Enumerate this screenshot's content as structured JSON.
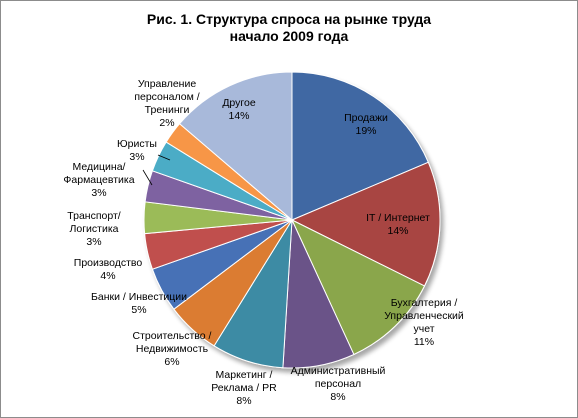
{
  "chart_data": {
    "type": "pie",
    "title_line1": "Рис. 1. Структура  спроса  на рынке труда",
    "title_line2": "начало 2009 года",
    "slices": [
      {
        "key": "sales",
        "lines": [
          "Продажи"
        ],
        "pct": "19%",
        "value": 19,
        "color": "#4068a3"
      },
      {
        "key": "it",
        "lines": [
          "IT / Интернет"
        ],
        "pct": "14%",
        "value": 14,
        "color": "#a84542"
      },
      {
        "key": "accounting",
        "lines": [
          "Бухгалтерия /",
          "Управленческий",
          "учет"
        ],
        "pct": "11%",
        "value": 11,
        "color": "#8aa64b"
      },
      {
        "key": "admin",
        "lines": [
          "Административный",
          "персонал"
        ],
        "pct": "8%",
        "value": 8,
        "color": "#6b5288"
      },
      {
        "key": "marketing",
        "lines": [
          "Маркетинг /",
          "Реклама / PR"
        ],
        "pct": "8%",
        "value": 8,
        "color": "#3d8ba4"
      },
      {
        "key": "construct",
        "lines": [
          "Строительство /",
          "Недвижимость"
        ],
        "pct": "6%",
        "value": 6,
        "color": "#db7c33"
      },
      {
        "key": "banks",
        "lines": [
          "Банки / Инвестиции"
        ],
        "pct": "5%",
        "value": 5,
        "color": "#4671b6"
      },
      {
        "key": "prod",
        "lines": [
          "Производство"
        ],
        "pct": "4%",
        "value": 4,
        "color": "#c0504d"
      },
      {
        "key": "transport",
        "lines": [
          "Транспорт/",
          "Логистика"
        ],
        "pct": "3%",
        "value": 3.5,
        "color": "#9bbb59"
      },
      {
        "key": "medicine",
        "lines": [
          "Медицина/",
          "Фармацевтика"
        ],
        "pct": "3%",
        "value": 3.5,
        "color": "#7e62a1"
      },
      {
        "key": "lawyers",
        "lines": [
          "Юристы"
        ],
        "pct": "3%",
        "value": 3.5,
        "color": "#4bacc6"
      },
      {
        "key": "hr",
        "lines": [
          "Управление",
          "персоналом /",
          "Тренинги"
        ],
        "pct": "2%",
        "value": 2.5,
        "color": "#f79646"
      },
      {
        "key": "other",
        "lines": [
          "Другое"
        ],
        "pct": "14%",
        "value": 14,
        "color": "#a8b9da"
      }
    ]
  }
}
